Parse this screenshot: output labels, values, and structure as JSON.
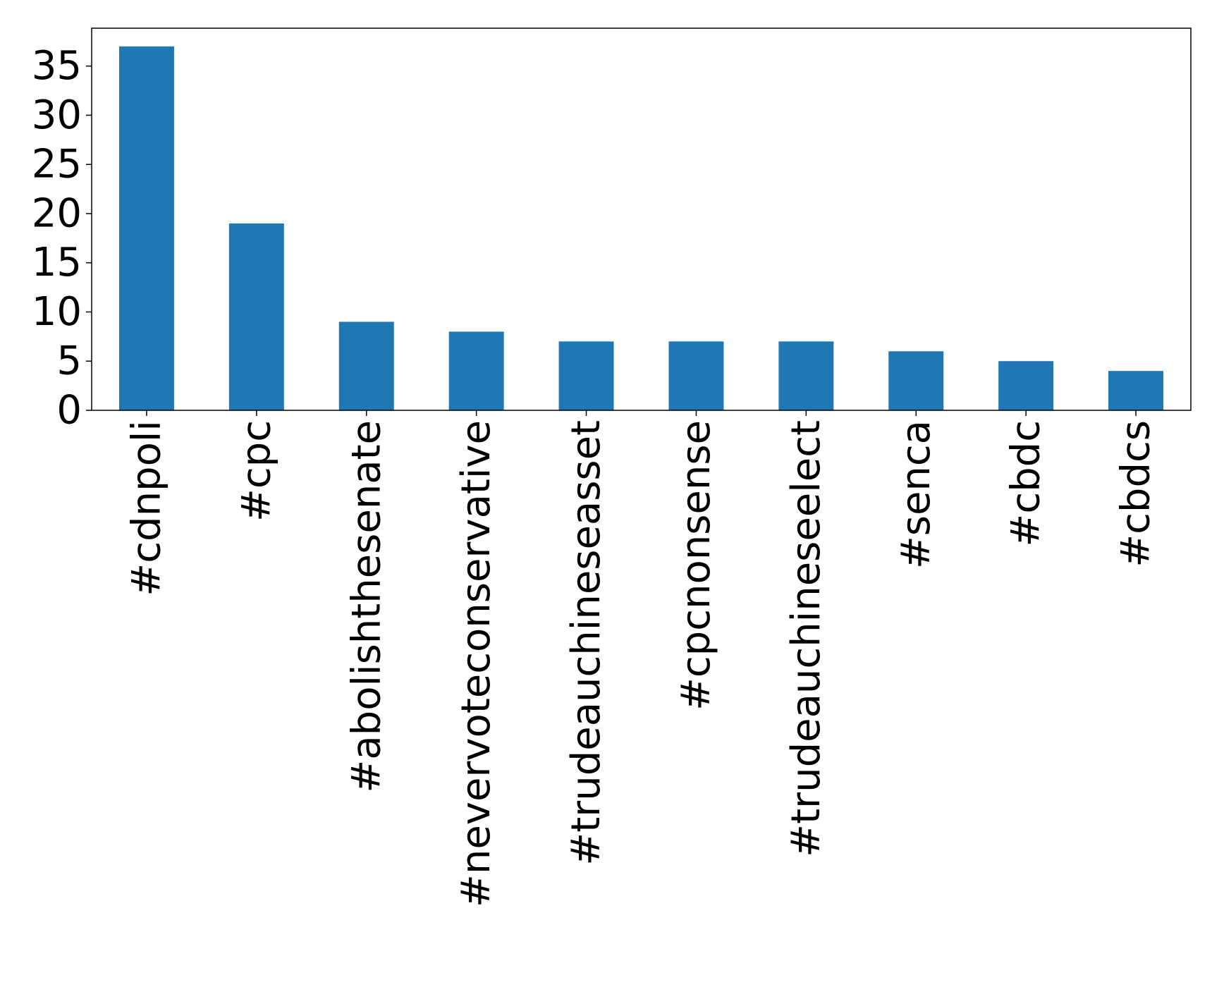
{
  "chart_data": {
    "type": "bar",
    "categories": [
      "#cdnpoli",
      "#cpc",
      "#abolishthesenate",
      "#nevervoteconservative",
      "#trudeauchineseasset",
      "#cpcnonsense",
      "#trudeauchineseelect",
      "#senca",
      "#cbdc",
      "#cbdcs"
    ],
    "values": [
      37,
      19,
      9,
      8,
      7,
      7,
      7,
      6,
      5,
      4
    ],
    "title": "",
    "xlabel": "",
    "ylabel": "",
    "ylim": [
      0,
      38.85
    ],
    "yticks": [
      0,
      5,
      10,
      15,
      20,
      25,
      30,
      35
    ],
    "bar_color": "#1f77b4",
    "grid": false,
    "legend": "none"
  }
}
